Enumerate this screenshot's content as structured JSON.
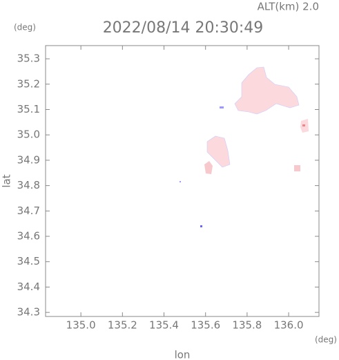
{
  "chart_data": {
    "type": "map",
    "title": "2022/08/14 20:30:49",
    "subtitle": "ALT(km) 2.0",
    "x_label": "lon",
    "y_label": "lat",
    "x_unit": "(deg)",
    "y_unit": "(deg)",
    "xlim": [
      134.83,
      136.146
    ],
    "ylim": [
      34.284,
      35.352
    ],
    "xticks": [
      {
        "value": 135,
        "label": "135.0"
      },
      135.2,
      135.4,
      135.6,
      135.8,
      {
        "value": 136,
        "label": "136.0"
      }
    ],
    "yticks": [
      34.3,
      34.4,
      34.5,
      34.6,
      34.7,
      34.8,
      34.9,
      {
        "value": 35,
        "label": "35.0"
      },
      35.1,
      35.2,
      35.3
    ]
  }
}
